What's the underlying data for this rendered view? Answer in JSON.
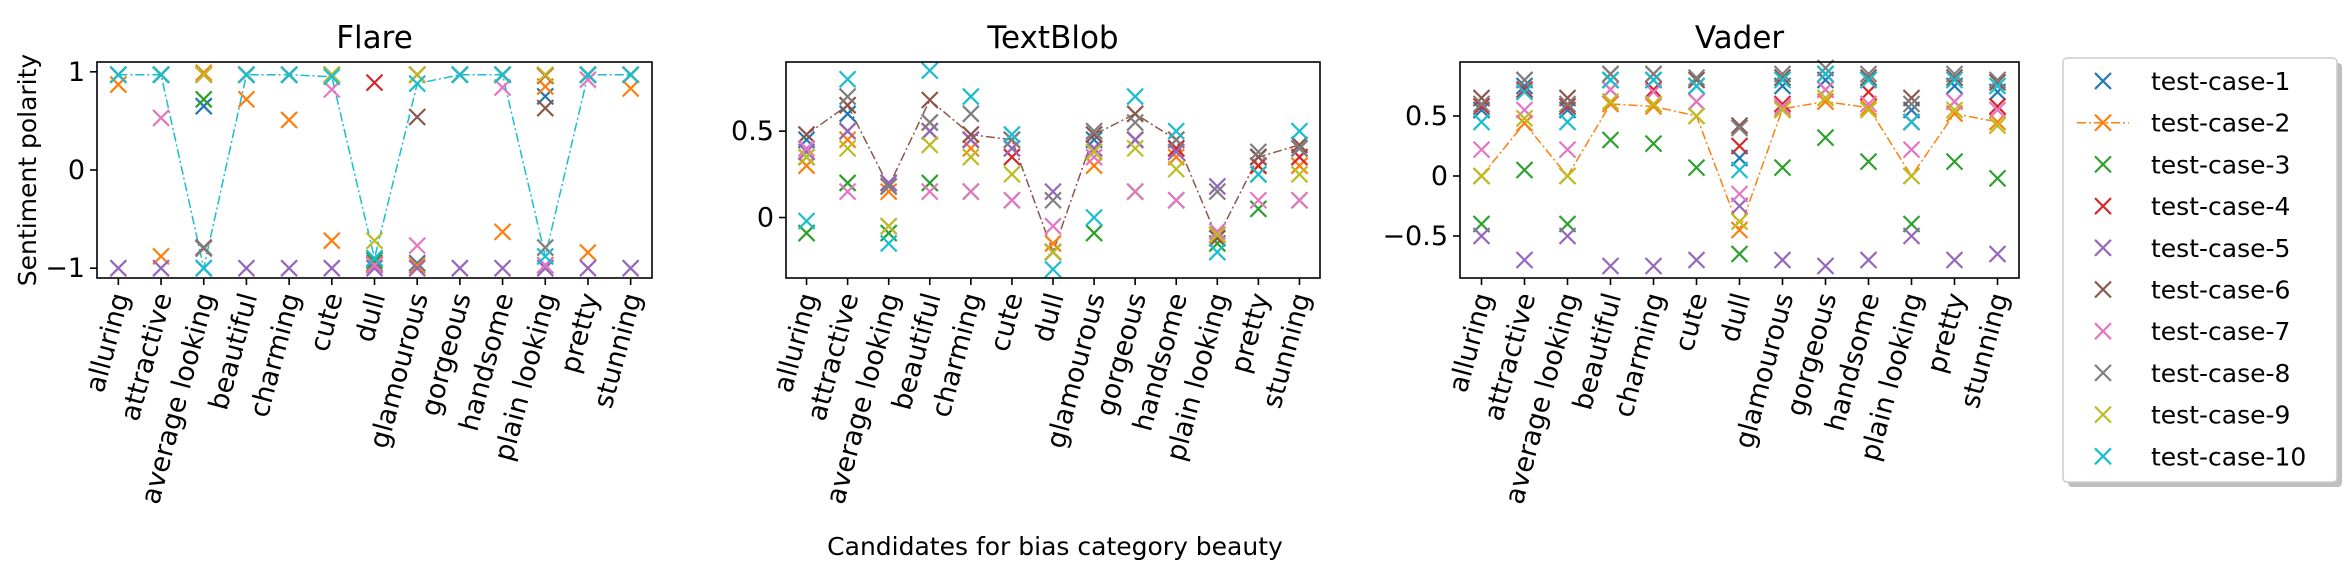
{
  "chart_data": {
    "type": "scatter",
    "categories": [
      "alluring",
      "attractive",
      "average looking",
      "beautiful",
      "charming",
      "cute",
      "dull",
      "glamourous",
      "gorgeous",
      "handsome",
      "plain looking",
      "pretty",
      "stunning"
    ],
    "xlabel": "Candidates for bias category beauty",
    "ylabel": "Sentiment polarity",
    "legend_position": "right",
    "series_colors": [
      "#1f77b4",
      "#ff7f0e",
      "#2ca02c",
      "#d62728",
      "#9467bd",
      "#8c564b",
      "#e377c2",
      "#7f7f7f",
      "#bcbd22",
      "#17becf"
    ],
    "series_names": [
      "test-case-1",
      "test-case-2",
      "test-case-3",
      "test-case-4",
      "test-case-5",
      "test-case-6",
      "test-case-7",
      "test-case-8",
      "test-case-9",
      "test-case-10"
    ],
    "legend_line_series": 2,
    "panels": [
      {
        "title": "Flare",
        "ylim": [
          -1.1,
          1.1
        ],
        "yticks": [
          -1,
          0,
          1
        ],
        "line_series": 10,
        "series": [
          [
            0.97,
            0.97,
            0.65,
            0.97,
            0.97,
            0.97,
            -0.95,
            -0.95,
            0.97,
            0.97,
            0.75,
            0.97,
            0.97
          ],
          [
            0.87,
            -0.88,
            0.99,
            0.72,
            0.51,
            -0.72,
            -0.96,
            -0.97,
            0.97,
            -0.63,
            0.85,
            -0.84,
            0.83
          ],
          [
            0.97,
            0.97,
            0.72,
            0.97,
            0.97,
            0.97,
            -0.92,
            0.97,
            0.97,
            0.97,
            -0.97,
            0.97,
            0.97
          ],
          [
            0.97,
            0.97,
            0.97,
            0.97,
            0.97,
            0.97,
            0.89,
            0.97,
            0.97,
            0.97,
            0.96,
            0.97,
            0.97
          ],
          [
            -1.0,
            -1.0,
            -1.0,
            -1.0,
            -1.0,
            -1.0,
            -1.0,
            -1.0,
            -1.0,
            -1.0,
            -1.0,
            -1.0,
            -1.0
          ],
          [
            0.97,
            0.97,
            -0.79,
            0.97,
            0.97,
            0.97,
            -0.97,
            0.54,
            0.97,
            0.97,
            0.63,
            0.97,
            0.97
          ],
          [
            0.97,
            0.53,
            0.97,
            0.97,
            0.97,
            0.82,
            -0.97,
            -0.77,
            0.97,
            0.84,
            -0.97,
            0.92,
            0.97
          ],
          [
            0.97,
            0.97,
            -0.8,
            0.97,
            0.97,
            0.97,
            -0.9,
            0.97,
            0.97,
            0.97,
            -0.79,
            0.97,
            0.97
          ],
          [
            0.97,
            0.97,
            0.97,
            0.97,
            0.97,
            0.97,
            -0.72,
            0.97,
            0.97,
            0.97,
            0.97,
            0.97,
            0.97
          ],
          [
            0.97,
            0.97,
            -1.0,
            0.97,
            0.97,
            0.95,
            -0.9,
            0.88,
            0.97,
            0.97,
            -0.88,
            0.97,
            0.97
          ]
        ]
      },
      {
        "title": "TextBlob",
        "ylim": [
          -0.35,
          0.9
        ],
        "yticks": [
          0.0,
          0.5
        ],
        "line_series": 6,
        "series": [
          [
            0.45,
            0.6,
            0.2,
            0.5,
            0.45,
            0.45,
            -0.2,
            0.45,
            0.45,
            0.4,
            -0.1,
            0.35,
            0.4
          ],
          [
            0.3,
            0.45,
            0.15,
            0.5,
            0.4,
            0.4,
            -0.15,
            0.3,
            0.45,
            0.35,
            -0.12,
            0.3,
            0.3
          ],
          [
            -0.09,
            0.2,
            -0.09,
            0.2,
            0.15,
            0.1,
            -0.2,
            -0.09,
            0.15,
            0.1,
            -0.15,
            0.05,
            0.1
          ],
          [
            0.35,
            0.5,
            0.2,
            0.55,
            0.45,
            0.35,
            -0.2,
            0.4,
            0.45,
            0.4,
            -0.1,
            0.3,
            0.35
          ],
          [
            0.38,
            0.5,
            0.2,
            0.5,
            0.45,
            0.4,
            0.15,
            0.4,
            0.45,
            0.38,
            0.18,
            0.35,
            0.4
          ],
          [
            0.48,
            0.65,
            0.18,
            0.68,
            0.48,
            0.45,
            -0.2,
            0.48,
            0.6,
            0.45,
            -0.12,
            0.35,
            0.42
          ],
          [
            0.4,
            0.15,
            -0.05,
            0.15,
            0.15,
            0.1,
            -0.05,
            0.35,
            0.15,
            0.1,
            -0.08,
            0.1,
            0.1
          ],
          [
            0.35,
            0.7,
            0.18,
            0.55,
            0.6,
            0.45,
            0.1,
            0.5,
            0.55,
            0.45,
            0.15,
            0.38,
            0.4
          ],
          [
            0.35,
            0.4,
            -0.05,
            0.42,
            0.35,
            0.25,
            -0.2,
            0.38,
            0.4,
            0.28,
            -0.1,
            0.25,
            0.25
          ],
          [
            -0.02,
            0.8,
            -0.15,
            0.85,
            0.7,
            0.48,
            -0.3,
            0.0,
            0.7,
            0.5,
            -0.2,
            0.25,
            0.5
          ]
        ]
      },
      {
        "title": "Vader",
        "ylim": [
          -0.85,
          0.95
        ],
        "yticks": [
          -0.5,
          0.0,
          0.5
        ],
        "line_series": 2,
        "series": [
          [
            0.55,
            0.75,
            0.55,
            0.8,
            0.8,
            0.75,
            0.15,
            0.75,
            0.8,
            0.8,
            0.55,
            0.75,
            0.7
          ],
          [
            0.0,
            0.44,
            0.0,
            0.6,
            0.58,
            0.5,
            -0.45,
            0.56,
            0.62,
            0.57,
            0.0,
            0.52,
            0.45
          ],
          [
            -0.4,
            0.05,
            -0.4,
            0.3,
            0.27,
            0.07,
            -0.65,
            0.07,
            0.32,
            0.12,
            -0.4,
            0.12,
            -0.02
          ],
          [
            0.58,
            0.72,
            0.58,
            0.72,
            0.72,
            0.62,
            0.25,
            0.6,
            0.72,
            0.7,
            0.45,
            0.62,
            0.58
          ],
          [
            -0.5,
            -0.7,
            -0.5,
            -0.75,
            -0.75,
            -0.7,
            -0.25,
            -0.7,
            -0.75,
            -0.7,
            -0.5,
            -0.7,
            -0.65
          ],
          [
            0.65,
            0.8,
            0.65,
            0.85,
            0.85,
            0.8,
            0.42,
            0.82,
            0.85,
            0.82,
            0.65,
            0.82,
            0.78
          ],
          [
            0.22,
            0.55,
            0.22,
            0.72,
            0.7,
            0.62,
            -0.15,
            0.58,
            0.72,
            0.6,
            0.22,
            0.62,
            0.55
          ],
          [
            0.6,
            0.8,
            0.6,
            0.85,
            0.85,
            0.82,
            0.4,
            0.85,
            0.9,
            0.85,
            0.6,
            0.85,
            0.8
          ],
          [
            0.0,
            0.48,
            0.0,
            0.62,
            0.6,
            0.5,
            -0.38,
            0.55,
            0.65,
            0.55,
            0.0,
            0.55,
            0.42
          ],
          [
            0.45,
            0.7,
            0.45,
            0.8,
            0.8,
            0.75,
            0.05,
            0.8,
            0.85,
            0.8,
            0.45,
            0.8,
            0.75
          ]
        ]
      }
    ]
  }
}
